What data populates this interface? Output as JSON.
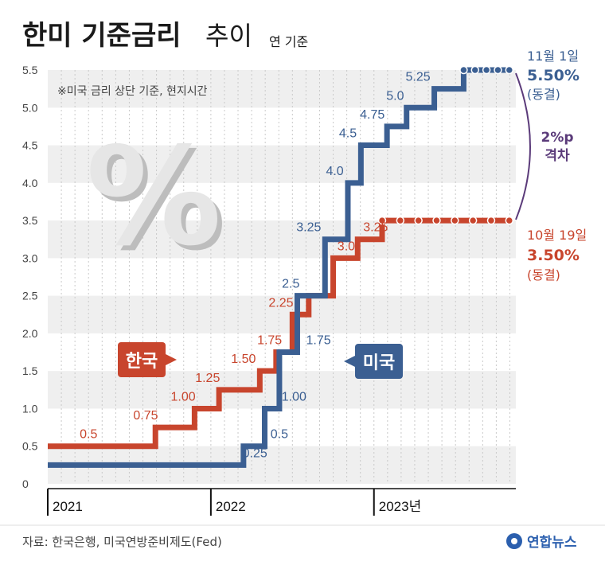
{
  "header": {
    "title_bold": "한미 기준금리",
    "title_light": "추이",
    "subtitle": "연 기준",
    "note": "※미국 금리 상단 기준, 현지시간"
  },
  "decor": {
    "percent_glyph": "%"
  },
  "chart_data": {
    "type": "line",
    "step": true,
    "title": "한미 기준금리 추이",
    "subtitle": "연 기준",
    "xlabel": "",
    "ylabel": "",
    "ylim": [
      0,
      5.5
    ],
    "yticks": [
      "0",
      "0.5",
      "1.0",
      "1.5",
      "2.0",
      "2.5",
      "3.0",
      "3.5",
      "4.0",
      "4.5",
      "5.0",
      "5.5"
    ],
    "xticks": [
      "2021",
      "2022",
      "2023년"
    ],
    "grid": true,
    "series": [
      {
        "name": "한국",
        "color": "#c8452d",
        "steps": [
          {
            "x": 2021.0,
            "y": 0.5
          },
          {
            "x": 2021.66,
            "y": 0.75
          },
          {
            "x": 2021.9,
            "y": 1.0
          },
          {
            "x": 2022.05,
            "y": 1.25
          },
          {
            "x": 2022.3,
            "y": 1.5
          },
          {
            "x": 2022.4,
            "y": 1.75
          },
          {
            "x": 2022.5,
            "y": 2.25
          },
          {
            "x": 2022.6,
            "y": 2.5
          },
          {
            "x": 2022.75,
            "y": 3.0
          },
          {
            "x": 2022.9,
            "y": 3.25
          },
          {
            "x": 2023.05,
            "y": 3.5
          },
          {
            "x": 2023.83,
            "y": 3.5
          }
        ],
        "labels": [
          {
            "text": "0.5",
            "x": 2021.25,
            "y": 0.5
          },
          {
            "text": "0.75",
            "x": 2021.6,
            "y": 0.75
          },
          {
            "text": "1.00",
            "x": 2021.83,
            "y": 1.0
          },
          {
            "text": "1.25",
            "x": 2021.98,
            "y": 1.25
          },
          {
            "text": "1.50",
            "x": 2022.2,
            "y": 1.5
          },
          {
            "text": "1.75",
            "x": 2022.36,
            "y": 1.75
          },
          {
            "text": "2.25",
            "x": 2022.43,
            "y": 2.25
          },
          {
            "text": "3.0",
            "x": 2022.83,
            "y": 3.0
          },
          {
            "text": "3.25",
            "x": 2023.01,
            "y": 3.25
          }
        ],
        "end_label": {
          "date": "10월 19일",
          "value": "3.50%",
          "status": "(동결)"
        }
      },
      {
        "name": "미국",
        "color": "#3b5f92",
        "steps": [
          {
            "x": 2021.0,
            "y": 0.25
          },
          {
            "x": 2022.2,
            "y": 0.5
          },
          {
            "x": 2022.33,
            "y": 1.0
          },
          {
            "x": 2022.42,
            "y": 1.75
          },
          {
            "x": 2022.53,
            "y": 2.5
          },
          {
            "x": 2022.7,
            "y": 3.25
          },
          {
            "x": 2022.84,
            "y": 4.0
          },
          {
            "x": 2022.92,
            "y": 4.5
          },
          {
            "x": 2023.08,
            "y": 4.75
          },
          {
            "x": 2023.2,
            "y": 5.0
          },
          {
            "x": 2023.37,
            "y": 5.25
          },
          {
            "x": 2023.55,
            "y": 5.5
          },
          {
            "x": 2023.83,
            "y": 5.5
          }
        ],
        "labels": [
          {
            "text": "0.25",
            "x": 2022.27,
            "y": 0.25
          },
          {
            "text": "0.5",
            "x": 2022.42,
            "y": 0.5
          },
          {
            "text": "1.00",
            "x": 2022.51,
            "y": 1.0
          },
          {
            "text": "1.75",
            "x": 2022.66,
            "y": 1.75
          },
          {
            "text": "2.5",
            "x": 2022.49,
            "y": 2.5
          },
          {
            "text": "3.25",
            "x": 2022.6,
            "y": 3.25
          },
          {
            "text": "4.0",
            "x": 2022.76,
            "y": 4.0
          },
          {
            "text": "4.5",
            "x": 2022.84,
            "y": 4.5
          },
          {
            "text": "4.75",
            "x": 2022.99,
            "y": 4.75
          },
          {
            "text": "5.0",
            "x": 2023.13,
            "y": 5.0
          },
          {
            "text": "5.25",
            "x": 2023.27,
            "y": 5.25
          }
        ],
        "end_label": {
          "date": "11월 1일",
          "value": "5.50%",
          "status": "(동결)"
        }
      }
    ],
    "gap_label": [
      "2%p",
      "격차"
    ],
    "colors": {
      "us": "#3b5f92",
      "kr": "#c8452d",
      "gap": "#5b3b7a",
      "band": "#efefef"
    }
  },
  "footer": {
    "source": "자료: 한국은행, 미국연방준비제도(Fed)",
    "brand": "연합뉴스",
    "brand_color": "#2b5fae"
  }
}
